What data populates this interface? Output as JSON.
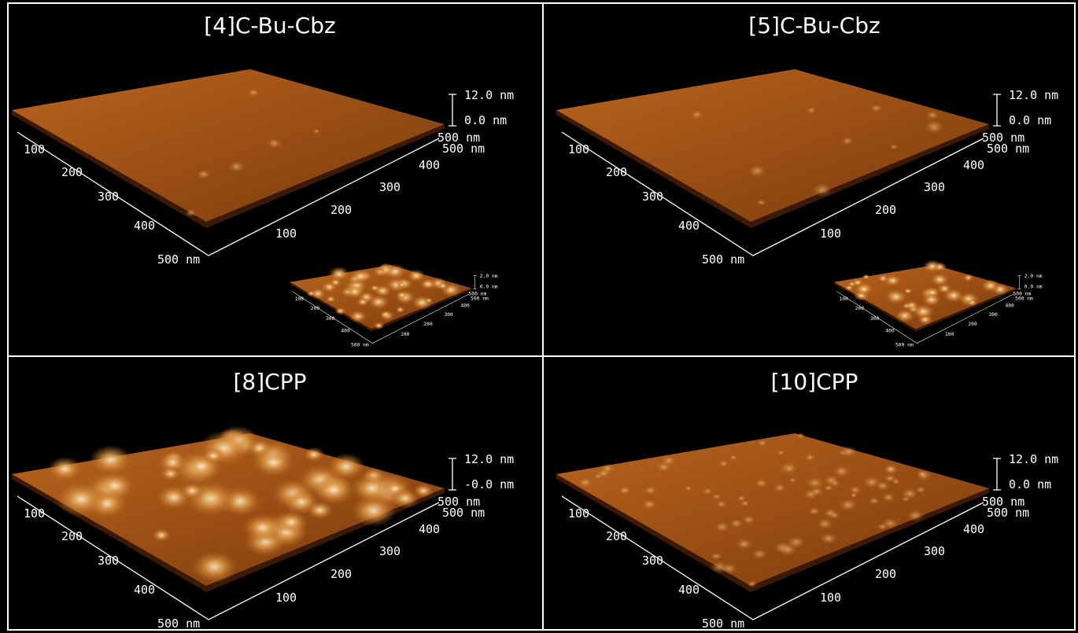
{
  "panels": [
    {
      "title": "[4]C-Bu-Cbz",
      "main": {
        "z_labels": [
          "12.0 nm",
          "0.0 nm"
        ],
        "corner_labels": [
          "500 nm",
          "500 nm"
        ],
        "left_axis": [
          "100",
          "200",
          "300",
          "400",
          "500 nm"
        ],
        "right_axis": [
          "100",
          "200",
          "300",
          "400"
        ]
      },
      "inset": {
        "z_labels": [
          "2.0 nm",
          "0.0 nm"
        ],
        "corner_labels": [
          "500 nm",
          "500 nm"
        ],
        "left_axis": [
          "100",
          "200",
          "300",
          "400",
          "500 nm"
        ],
        "right_axis": [
          "100",
          "200",
          "300",
          "400"
        ]
      }
    },
    {
      "title": "[5]C-Bu-Cbz",
      "main": {
        "z_labels": [
          "12.0 nm",
          "0.0 nm"
        ],
        "corner_labels": [
          "500 nm",
          "500 nm"
        ],
        "left_axis": [
          "100",
          "200",
          "300",
          "400",
          "500 nm"
        ],
        "right_axis": [
          "100",
          "200",
          "300",
          "400"
        ]
      },
      "inset": {
        "z_labels": [
          "2.0 nm",
          "0.0 nm"
        ],
        "corner_labels": [
          "500 nm",
          "500 nm"
        ],
        "left_axis": [
          "100",
          "200",
          "300",
          "400",
          "500 nm"
        ],
        "right_axis": [
          "100",
          "200",
          "300",
          "400"
        ]
      }
    },
    {
      "title": "[8]CPP",
      "main": {
        "z_labels": [
          "12.0 nm",
          "-0.0 nm"
        ],
        "corner_labels": [
          "500 nm",
          "500 nm"
        ],
        "left_axis": [
          "100",
          "200",
          "300",
          "400",
          "500 nm"
        ],
        "right_axis": [
          "100",
          "200",
          "300",
          "400"
        ]
      }
    },
    {
      "title": "[10]CPP",
      "main": {
        "z_labels": [
          "12.0 nm",
          "0.0 nm"
        ],
        "corner_labels": [
          "500 nm",
          "500 nm"
        ],
        "left_axis": [
          "100",
          "200",
          "300",
          "400",
          "500 nm"
        ],
        "right_axis": [
          "100",
          "200",
          "300",
          "400"
        ]
      }
    }
  ]
}
